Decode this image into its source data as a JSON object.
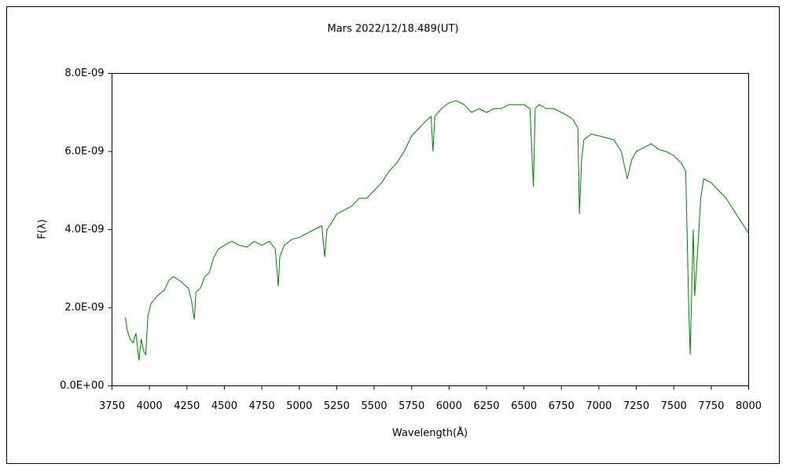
{
  "chart_data": {
    "type": "line",
    "title": "Mars  2022/12/18.489(UT)",
    "x_label": "Wavelength(Å)",
    "y_label": "F(λ)",
    "xlim": [
      3750,
      8000
    ],
    "xticks": [
      3750,
      4000,
      4250,
      4500,
      4750,
      5000,
      5250,
      5500,
      5750,
      6000,
      6250,
      6500,
      6750,
      7000,
      7250,
      7500,
      7750,
      8000
    ],
    "ylim": [
      0,
      8e-09
    ],
    "yticks": [
      {
        "value": 0,
        "label": "0.0E+00"
      },
      {
        "value": 2e-09,
        "label": "2.0E-09"
      },
      {
        "value": 4e-09,
        "label": "4.0E-09"
      },
      {
        "value": 6e-09,
        "label": "6.0E-09"
      },
      {
        "value": 8e-09,
        "label": "8.0E-09"
      }
    ],
    "series": [
      {
        "color": "#008000",
        "x": [
          3840,
          3850,
          3870,
          3890,
          3910,
          3930,
          3945,
          3960,
          3975,
          3990,
          4010,
          4050,
          4100,
          4130,
          4160,
          4200,
          4230,
          4260,
          4280,
          4300,
          4310,
          4340,
          4370,
          4400,
          4430,
          4460,
          4500,
          4550,
          4600,
          4650,
          4700,
          4750,
          4800,
          4840,
          4860,
          4870,
          4900,
          4950,
          5000,
          5050,
          5100,
          5150,
          5170,
          5185,
          5220,
          5250,
          5300,
          5350,
          5400,
          5450,
          5500,
          5550,
          5600,
          5650,
          5700,
          5750,
          5800,
          5850,
          5880,
          5893,
          5905,
          5950,
          6000,
          6050,
          6100,
          6150,
          6200,
          6250,
          6300,
          6350,
          6400,
          6450,
          6500,
          6540,
          6563,
          6575,
          6600,
          6650,
          6700,
          6750,
          6800,
          6830,
          6860,
          6870,
          6885,
          6900,
          6950,
          7000,
          7050,
          7100,
          7150,
          7190,
          7220,
          7250,
          7300,
          7350,
          7400,
          7450,
          7500,
          7550,
          7580,
          7600,
          7610,
          7620,
          7630,
          7640,
          7660,
          7680,
          7700,
          7750,
          7800,
          7850,
          7900,
          7950,
          8000
        ],
        "values": [
          1.75e-09,
          1.45e-09,
          1.2e-09,
          1.1e-09,
          1.35e-09,
          6.5e-10,
          1.2e-09,
          9e-10,
          8e-10,
          1.8e-09,
          2.1e-09,
          2.3e-09,
          2.45e-09,
          2.7e-09,
          2.8e-09,
          2.7e-09,
          2.6e-09,
          2.5e-09,
          2.2e-09,
          1.7e-09,
          2.4e-09,
          2.5e-09,
          2.8e-09,
          2.9e-09,
          3.3e-09,
          3.5e-09,
          3.6e-09,
          3.7e-09,
          3.6e-09,
          3.55e-09,
          3.7e-09,
          3.6e-09,
          3.7e-09,
          3.5e-09,
          2.55e-09,
          3.3e-09,
          3.6e-09,
          3.75e-09,
          3.8e-09,
          3.9e-09,
          4e-09,
          4.1e-09,
          3.3e-09,
          4e-09,
          4.2e-09,
          4.4e-09,
          4.5e-09,
          4.6e-09,
          4.8e-09,
          4.8e-09,
          5e-09,
          5.2e-09,
          5.5e-09,
          5.7e-09,
          6e-09,
          6.4e-09,
          6.6e-09,
          6.8e-09,
          6.9e-09,
          6e-09,
          6.9e-09,
          7.1e-09,
          7.25e-09,
          7.3e-09,
          7.2e-09,
          7e-09,
          7.1e-09,
          7e-09,
          7.1e-09,
          7.1e-09,
          7.2e-09,
          7.2e-09,
          7.2e-09,
          7.1e-09,
          5.1e-09,
          7.1e-09,
          7.2e-09,
          7.1e-09,
          7.1e-09,
          7e-09,
          6.9e-09,
          6.8e-09,
          6.6e-09,
          4.4e-09,
          5.8e-09,
          6.3e-09,
          6.45e-09,
          6.4e-09,
          6.35e-09,
          6.3e-09,
          6e-09,
          5.3e-09,
          5.8e-09,
          6e-09,
          6.1e-09,
          6.2e-09,
          6.05e-09,
          6e-09,
          5.9e-09,
          5.7e-09,
          5.5e-09,
          2e-09,
          8e-10,
          2.5e-09,
          4e-09,
          2.3e-09,
          3.5e-09,
          4.8e-09,
          5.3e-09,
          5.2e-09,
          5e-09,
          4.8e-09,
          4.5e-09,
          4.2e-09,
          3.9e-09
        ]
      }
    ]
  }
}
